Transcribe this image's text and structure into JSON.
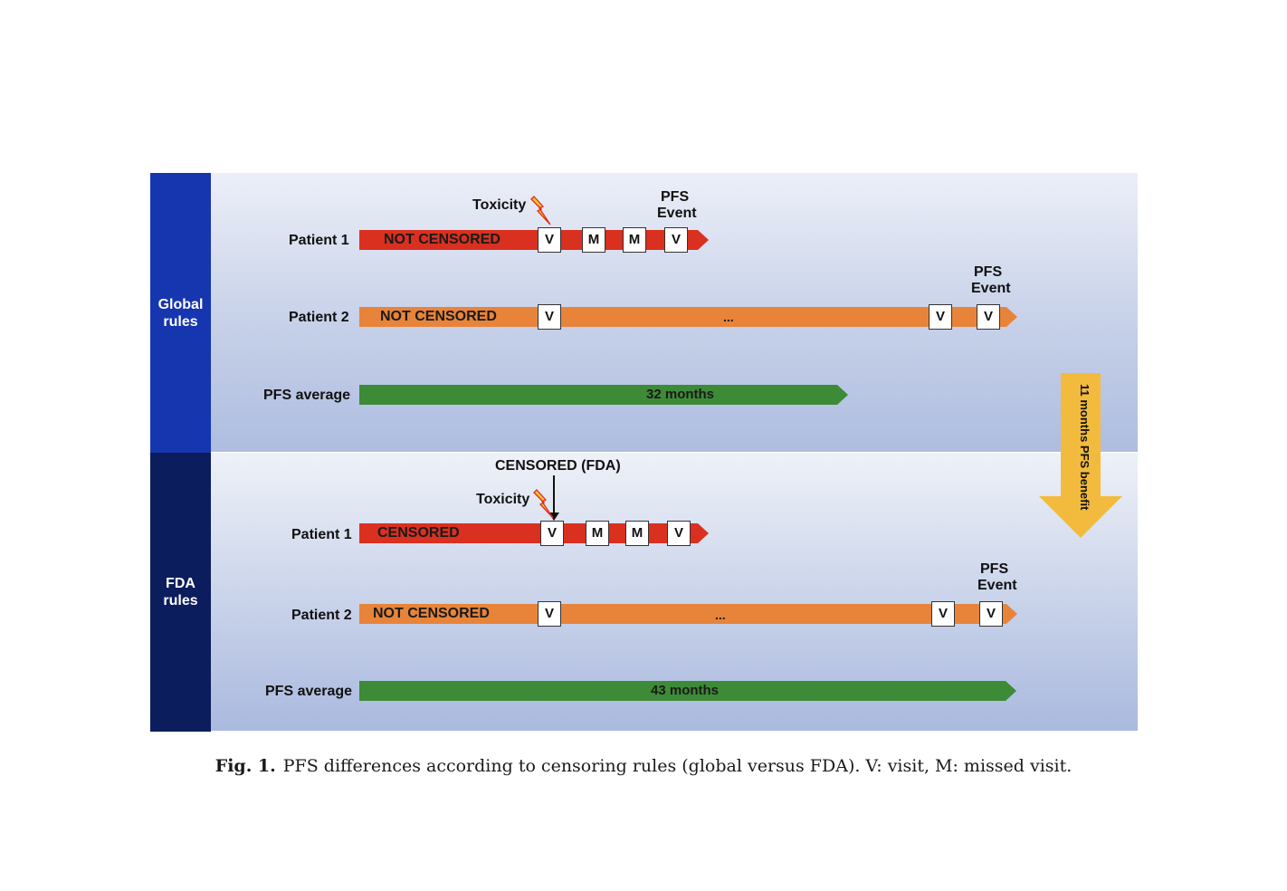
{
  "global": {
    "section_label_1": "Global",
    "section_label_2": "rules",
    "patient1": {
      "label": "Patient 1",
      "bar_text": "NOT CENSORED",
      "toxicity": "Toxicity",
      "event_line1": "PFS",
      "event_line2": "Event",
      "boxes": [
        "V",
        "M",
        "M",
        "V"
      ]
    },
    "patient2": {
      "label": "Patient 2",
      "bar_text": "NOT CENSORED",
      "event_line1": "PFS",
      "event_line2": "Event",
      "box_first": "V",
      "dots": "...",
      "box_mid": "V",
      "box_last": "V"
    },
    "average": {
      "label": "PFS average",
      "bar_text": "32 months"
    }
  },
  "fda": {
    "section_label_1": "FDA",
    "section_label_2": "rules",
    "censored_note": "CENSORED (FDA)",
    "patient1": {
      "label": "Patient 1",
      "bar_text": "CENSORED",
      "toxicity": "Toxicity",
      "boxes": [
        "V",
        "M",
        "M",
        "V"
      ]
    },
    "patient2": {
      "label": "Patient 2",
      "bar_text": "NOT CENSORED",
      "event_line1": "PFS",
      "event_line2": "Event",
      "box_first": "V",
      "dots": "...",
      "box_mid": "V",
      "box_last": "V"
    },
    "average": {
      "label": "PFS average",
      "bar_text": "43 months"
    }
  },
  "benefit_label": "11 months PFS benefit",
  "caption": {
    "prefix": "Fig. 1.",
    "text": "PFS differences according to censoring rules (global versus FDA). V: visit, M: missed visit."
  },
  "colors": {
    "global_side": "#1636b0",
    "fda_side": "#0b1d5c",
    "red_bar": "#d9301f",
    "orange_bar": "#e8843a",
    "green_bar": "#3d8b37",
    "benefit_arrow": "#f3bb3d",
    "toxicity_bolt": "#f2c230"
  }
}
